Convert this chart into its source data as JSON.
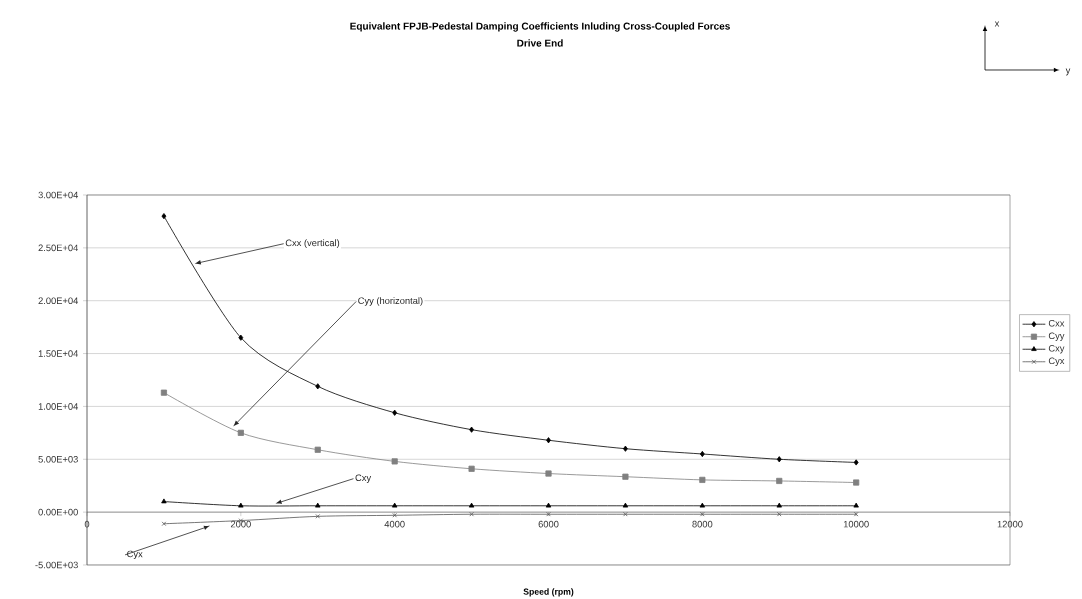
{
  "chart_data": {
    "type": "line",
    "title": "Equivalent FPJB-Pedestal Damping Coefficients Inluding Cross-Coupled Forces",
    "subtitle": "Drive End",
    "xlabel": "Speed (rpm)",
    "x": [
      1000,
      2000,
      3000,
      4000,
      5000,
      6000,
      7000,
      8000,
      9000,
      10000
    ],
    "series": [
      {
        "name": "Cxx",
        "color": "#000000",
        "marker": "diamond",
        "values": [
          28000,
          16500,
          11900,
          9400,
          7800,
          6800,
          6000,
          5500,
          5000,
          4700
        ]
      },
      {
        "name": "Cyy",
        "color": "#808080",
        "marker": "square",
        "values": [
          11300,
          7500,
          5900,
          4800,
          4100,
          3650,
          3350,
          3050,
          2950,
          2800
        ]
      },
      {
        "name": "Cxy",
        "color": "#000000",
        "marker": "triangle",
        "values": [
          1000,
          600,
          600,
          600,
          600,
          600,
          600,
          600,
          600,
          600
        ]
      },
      {
        "name": "Cyx",
        "color": "#555555",
        "marker": "cross",
        "values": [
          -1100,
          -800,
          -400,
          -300,
          -200,
          -200,
          -200,
          -200,
          -200,
          -200
        ]
      }
    ],
    "xlim": [
      0,
      12000
    ],
    "xticks": [
      0,
      2000,
      4000,
      6000,
      8000,
      10000,
      12000
    ],
    "ylim": [
      -5000,
      30000
    ],
    "yticks": [
      {
        "value": -5000,
        "label": "-5.00E+03"
      },
      {
        "value": 0,
        "label": "0.00E+00"
      },
      {
        "value": 5000,
        "label": "5.00E+03"
      },
      {
        "value": 10000,
        "label": "1.00E+04"
      },
      {
        "value": 15000,
        "label": "1.50E+04"
      },
      {
        "value": 20000,
        "label": "2.00E+04"
      },
      {
        "value": 25000,
        "label": "2.50E+04"
      },
      {
        "value": 30000,
        "label": "3.00E+04"
      }
    ],
    "grid": "y",
    "legend": "right",
    "line_style": "solid",
    "annotations": [
      {
        "text": "Cxx (vertical)",
        "x": 1400,
        "y": 23500
      },
      {
        "text": "Cyy (horizontal)",
        "x": 1900,
        "y": 8100
      },
      {
        "text": "Cxy",
        "x": 2450,
        "y": 800
      },
      {
        "text": "Cyx",
        "x": 1600,
        "y": -1300
      },
      "x",
      "y"
    ]
  }
}
